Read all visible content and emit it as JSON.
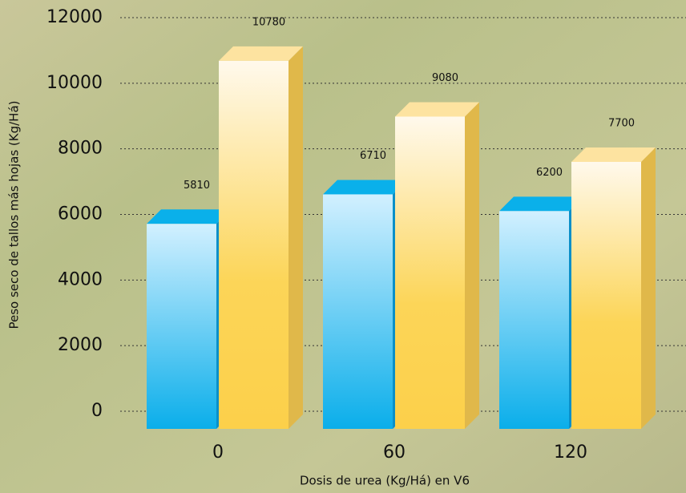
{
  "chart_data": {
    "type": "bar3d",
    "y_label": "Peso seco de tallos más hojas (Kg/Há)",
    "x_label": "Dosis de urea (Kg/Há) en V6",
    "categories": [
      "0",
      "60",
      "120"
    ],
    "series": [
      {
        "color": "#0aaeea",
        "values": [
          5810,
          6710,
          6200
        ]
      },
      {
        "color": "#fcd04a",
        "values": [
          10780,
          9080,
          7700
        ]
      }
    ],
    "ylim": [
      0,
      12000
    ],
    "yticks": [
      0,
      2000,
      4000,
      6000,
      8000,
      10000,
      12000
    ],
    "grid": true
  }
}
